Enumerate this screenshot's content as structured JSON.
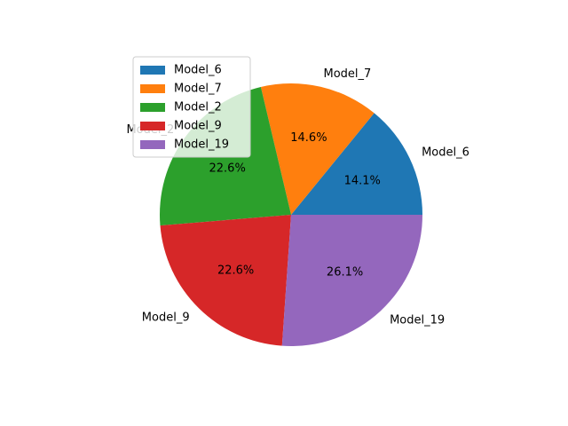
{
  "chart_data": {
    "type": "pie",
    "title": "",
    "categories": [
      "Model_6",
      "Model_7",
      "Model_2",
      "Model_9",
      "Model_19"
    ],
    "values": [
      14.1,
      14.6,
      22.6,
      22.6,
      26.1
    ],
    "value_labels": [
      "14.1%",
      "14.6%",
      "22.6%",
      "22.6%",
      "26.1%"
    ],
    "colors": [
      "#1f77b4",
      "#ff7f0e",
      "#2ca02c",
      "#d62728",
      "#9467bd"
    ],
    "start_angle_deg": 0,
    "direction": "counterclockwise",
    "legend": {
      "placement": "upper-left",
      "entries": [
        "Model_6",
        "Model_7",
        "Model_2",
        "Model_9",
        "Model_19"
      ]
    }
  }
}
